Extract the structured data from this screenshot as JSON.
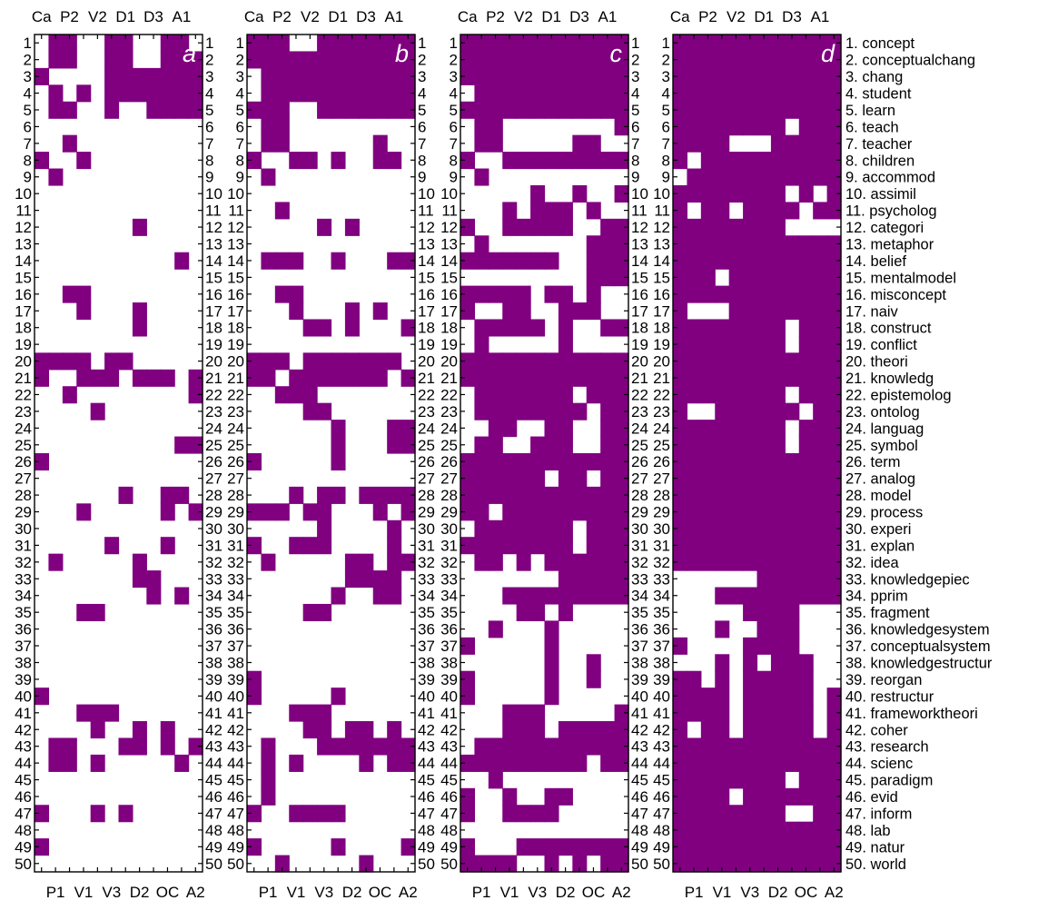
{
  "chart_data": {
    "type": "heatmap",
    "title": "",
    "fill_color": "#800080",
    "top_columns_label": [
      "Ca",
      "P2",
      "V2",
      "D1",
      "D3",
      "A1"
    ],
    "bottom_columns_label": [
      "P1",
      "V1",
      "V3",
      "D2",
      "OC",
      "A2"
    ],
    "columns": [
      "Ca",
      "P1",
      "P2",
      "V1",
      "V2",
      "V3",
      "D1",
      "D2",
      "D3",
      "OC",
      "A1",
      "A2"
    ],
    "row_numbers": [
      "1",
      "2",
      "3",
      "4",
      "5",
      "6",
      "7",
      "8",
      "9",
      "10",
      "11",
      "12",
      "13",
      "14",
      "15",
      "16",
      "17",
      "18",
      "19",
      "20",
      "21",
      "22",
      "23",
      "24",
      "25",
      "26",
      "27",
      "28",
      "29",
      "30",
      "31",
      "32",
      "33",
      "34",
      "35",
      "36",
      "37",
      "38",
      "39",
      "40",
      "41",
      "42",
      "43",
      "44",
      "45",
      "46",
      "47",
      "48",
      "49",
      "50"
    ],
    "terms": [
      "1.  concept",
      "2.  conceptualchang",
      "3.  chang",
      "4.  student",
      "5.  learn",
      "6.  teach",
      "7.  teacher",
      "8.  children",
      "9.  accommod",
      "10.  assimil",
      "11.  psycholog",
      "12.  categori",
      "13.  metaphor",
      "14.  belief",
      "15.  mentalmodel",
      "16.  misconcept",
      "17.  naiv",
      "18.  construct",
      "19.  conflict",
      "20.  theori",
      "21.  knowledg",
      "22.  epistemolog",
      "23.  ontolog",
      "24.  languag",
      "25.  symbol",
      "26.  term",
      "27.  analog",
      "28.  model",
      "29.  process",
      "30.  experi",
      "31.  explan",
      "32.  idea",
      "33.  knowledgepiec",
      "34.  pprim",
      "35.  fragment",
      "36.  knowledgesystem",
      "37.  conceptualsystem",
      "38.  knowledgestructur",
      "39.  reorgan",
      "40.  restructur",
      "41.  frameworktheori",
      "42.  coher",
      "43.  research",
      "44.  scienc",
      "45.  paradigm",
      "46.  evid",
      "47.  inform",
      "48.  lab",
      "49.  natur",
      "50.  world"
    ],
    "panels": [
      {
        "label": "a",
        "matrix": [
          "011001100110",
          "011001100111",
          "100001111111",
          "010101111111",
          "011001001111",
          "000000000000",
          "001000000000",
          "100100000000",
          "010000000000",
          "000000000000",
          "000000000000",
          "000000010000",
          "000000000000",
          "000000000010",
          "000000000000",
          "001100000000",
          "000100010000",
          "000000010000",
          "000000000000",
          "111101100000",
          "100111011101",
          "001000000001",
          "000010000000",
          "000000000000",
          "000000000011",
          "100000000000",
          "000000000000",
          "000000100110",
          "000100000101",
          "000000000000",
          "000001000100",
          "010000010000",
          "000000011000",
          "000000001010",
          "000110000000",
          "000000000000",
          "000000000000",
          "000000000000",
          "000000000000",
          "100000000000",
          "000111000000",
          "000010010100",
          "011000110101",
          "011010000010",
          "000000000000",
          "000000000000",
          "100010100000",
          "000000000000",
          "100000000000",
          "000000000000"
        ]
      },
      {
        "label": "b",
        "matrix": [
          "111001111111",
          "111111111111",
          "011111111111",
          "011111111111",
          "111001111111",
          "011000000000",
          "011000000100",
          "100110100110",
          "010000000000",
          "000000000000",
          "001000000000",
          "000001010000",
          "000000000000",
          "011100100011",
          "000000000000",
          "001100000000",
          "000100010100",
          "000011010001",
          "000000000000",
          "111011111110",
          "110111111101",
          "001110000000",
          "000011000000",
          "000000100011",
          "000000100011",
          "100000100000",
          "000000000000",
          "000101101111",
          "111011000101",
          "000001000010",
          "100111000010",
          "010000011011",
          "000000011110",
          "000000100110",
          "000011000000",
          "000000000000",
          "000000000000",
          "000000000000",
          "100000000000",
          "100000100000",
          "000111000000",
          "000011011010",
          "010001111111",
          "010100001011",
          "010000000000",
          "010000000000",
          "100111100000",
          "000000000000",
          "100000100001",
          "001000001000"
        ]
      },
      {
        "label": "c",
        "matrix": [
          "111111111111",
          "111111111111",
          "111111111111",
          "011111111111",
          "111111111111",
          "011000000001",
          "011000001100",
          "100111111111",
          "010000000000",
          "000001001001",
          "000101110100",
          "100111110011",
          "010000000111",
          "111111100111",
          "000000000111",
          "111110110100",
          "100110011100",
          "011111010011",
          "010000010000",
          "111111111111",
          "111111111111",
          "011111110111",
          "011111111011",
          "001100110011",
          "011001110011",
          "111111111111",
          "111111011011",
          "111111111111",
          "110111111111",
          "011111110111",
          "111111110111",
          "011010111111",
          "000000011111",
          "000111111111",
          "000011010000",
          "001000100000",
          "100000100000",
          "000000100100",
          "100000100100",
          "100000100000",
          "000111000001",
          "000111011111",
          "011111111111",
          "111111111011",
          "001000000000",
          "100100110000",
          "100111100000",
          "000000000000",
          "100011111111",
          "111100101011"
        ]
      },
      {
        "label": "d",
        "matrix": [
          "111111111111",
          "111111111111",
          "111111111111",
          "111111111111",
          "111111111111",
          "111111110111",
          "111100011111",
          "101111111111",
          "011111111111",
          "111111110101",
          "101101111011",
          "111111110000",
          "111111111111",
          "111111111111",
          "111011111111",
          "111111111111",
          "100011111111",
          "111111110111",
          "111111110111",
          "111111111111",
          "111111111111",
          "111111110111",
          "100111111011",
          "111111110111",
          "111111110111",
          "111111111111",
          "111111111111",
          "111111111111",
          "111111111111",
          "111111111111",
          "111111111111",
          "111111111111",
          "000000111111",
          "000111111111",
          "000001111000",
          "000100111000",
          "100001111000",
          "000101011100",
          "110101111100",
          "111101111101",
          "111101111101",
          "101101111101",
          "111111111111",
          "111111111111",
          "111111110111",
          "111101111111",
          "111111110011",
          "111111111111",
          "111111111111",
          "111111111111"
        ]
      }
    ]
  }
}
